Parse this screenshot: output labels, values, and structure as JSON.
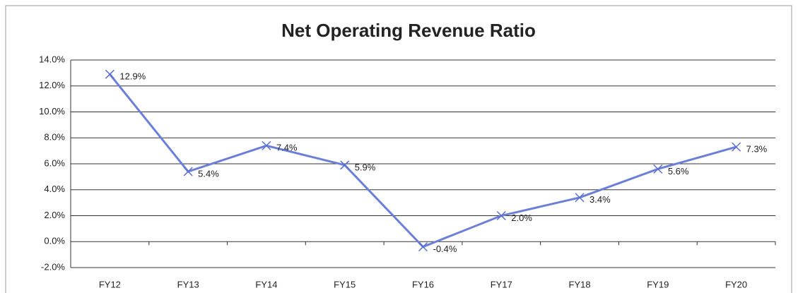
{
  "chart_data": {
    "type": "line",
    "title": "Net Operating Revenue Ratio",
    "categories": [
      "FY12",
      "FY13",
      "FY14",
      "FY15",
      "FY16",
      "FY17",
      "FY18",
      "FY19",
      "FY20"
    ],
    "series": [
      {
        "color": "#6c7fd8",
        "values": [
          12.9,
          5.4,
          7.4,
          5.9,
          -0.4,
          2.0,
          3.4,
          5.6,
          7.3
        ],
        "value_labels": [
          "12.9%",
          "5.4%",
          "7.4%",
          "5.9%",
          "-0.4%",
          "2.0%",
          "3.4%",
          "5.6%",
          "7.3%"
        ]
      }
    ],
    "ylim": [
      -2,
      14
    ],
    "yticks": [
      {
        "value": -2,
        "label": "-2.0%"
      },
      {
        "value": 0,
        "label": "0.0%"
      },
      {
        "value": 2,
        "label": "2.0%"
      },
      {
        "value": 4,
        "label": "4.0%"
      },
      {
        "value": 6,
        "label": "6.0%"
      },
      {
        "value": 8,
        "label": "8.0%"
      },
      {
        "value": 10,
        "label": "10.0%"
      },
      {
        "value": 12,
        "label": "12.0%"
      },
      {
        "value": 14,
        "label": "14.0%"
      }
    ],
    "grid": true
  }
}
